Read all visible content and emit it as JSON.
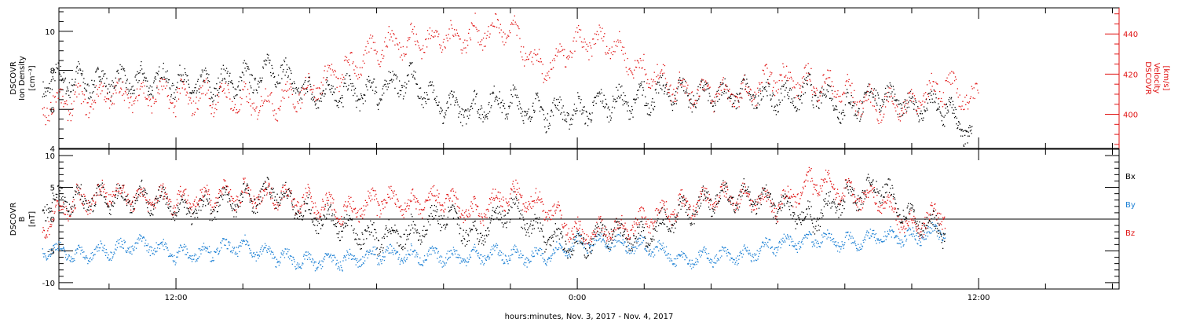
{
  "chart_data": [
    {
      "type": "scatter",
      "panel": "top",
      "left_axis_label": [
        "DSCOVR",
        "Ion Density",
        "[cm⁻³]"
      ],
      "right_axis_label": [
        "DSCOVR",
        "Velocity",
        "[km/s]"
      ],
      "left_ylim": [
        4,
        11.2
      ],
      "left_yticks": [
        4,
        6,
        8,
        10
      ],
      "right_ylim": [
        383,
        453
      ],
      "right_yticks": [
        400,
        420,
        440
      ],
      "series": [
        {
          "name": "Ion Density",
          "axis": "left",
          "color": "#000000",
          "x": [
            8.0,
            9.0,
            10.0,
            11.0,
            12.0,
            13.0,
            14.0,
            15.0,
            16.0,
            17.0,
            18.0,
            19.0,
            20.0,
            21.0,
            22.0,
            23.0,
            24.0,
            25.0,
            26.0,
            27.0,
            28.0,
            29.0,
            30.0,
            31.0,
            32.0,
            33.0,
            34.0,
            35.0
          ],
          "y": [
            7.4,
            7.6,
            7.3,
            7.6,
            7.4,
            7.2,
            7.6,
            8.0,
            6.8,
            6.9,
            6.9,
            7.7,
            6.0,
            6.2,
            6.4,
            5.8,
            6.0,
            6.3,
            6.6,
            7.0,
            6.6,
            7.0,
            6.5,
            7.0,
            6.1,
            6.7,
            6.3,
            6.0
          ],
          "end": [
            35.8,
            4.6
          ]
        },
        {
          "name": "Velocity",
          "axis": "right",
          "color": "#e01010",
          "x": [
            8.0,
            9.0,
            10.0,
            11.0,
            12.0,
            13.0,
            14.0,
            15.0,
            16.0,
            17.0,
            18.0,
            19.0,
            20.0,
            21.0,
            22.0,
            23.0,
            24.0,
            25.0,
            26.0,
            27.0,
            28.0,
            29.0,
            30.0,
            31.0,
            32.0,
            33.0,
            34.0,
            35.0
          ],
          "y": [
            404,
            407,
            409,
            411,
            408,
            409,
            407,
            405,
            414,
            421,
            433,
            438,
            437,
            441,
            442,
            420,
            437,
            435,
            421,
            414,
            410,
            411,
            418,
            416,
            412,
            403,
            407,
            414
          ],
          "end": [
            36.0,
            406
          ]
        }
      ]
    },
    {
      "type": "scatter",
      "panel": "bottom",
      "left_axis_label": [
        "DSCOVR",
        "B",
        "[nT]"
      ],
      "ylim": [
        -11,
        11
      ],
      "yticks": [
        -10,
        -5,
        0,
        5,
        10
      ],
      "zero_line": true,
      "legend": [
        "Bx",
        "By",
        "Bz"
      ],
      "legend_placement": "right",
      "series": [
        {
          "name": "Bx",
          "color": "#000000",
          "x": [
            8.0,
            9.0,
            10.0,
            11.0,
            12.0,
            13.0,
            14.0,
            15.0,
            16.0,
            17.0,
            18.0,
            19.0,
            20.0,
            21.0,
            22.0,
            23.0,
            24.0,
            25.0,
            26.0,
            27.0,
            28.0,
            29.0,
            30.0,
            31.0,
            32.0,
            33.0,
            34.0,
            35.0
          ],
          "y": [
            2.5,
            3.5,
            3.0,
            4.0,
            1.5,
            2.0,
            3.5,
            4.0,
            1.0,
            -1.0,
            -3.0,
            -2.0,
            0.5,
            -2.5,
            2.0,
            -2.5,
            -4.0,
            -2.0,
            -3.0,
            1.0,
            3.0,
            4.0,
            2.0,
            0.0,
            3.5,
            5.0,
            0.5,
            -2.0
          ]
        },
        {
          "name": "By",
          "color": "#1a7fd4",
          "x": [
            8.0,
            9.0,
            10.0,
            11.0,
            12.0,
            13.0,
            14.0,
            15.0,
            16.0,
            17.0,
            18.0,
            19.0,
            20.0,
            21.0,
            22.0,
            23.0,
            24.0,
            25.0,
            26.0,
            27.0,
            28.0,
            29.0,
            30.0,
            31.0,
            32.0,
            33.0,
            34.0,
            35.0
          ],
          "y": [
            -4.5,
            -5.5,
            -5.0,
            -3.5,
            -5.5,
            -5.0,
            -4.0,
            -6.0,
            -6.5,
            -6.5,
            -5.5,
            -5.5,
            -6.0,
            -5.5,
            -5.5,
            -6.0,
            -3.5,
            -4.0,
            -4.0,
            -6.0,
            -6.0,
            -5.5,
            -4.0,
            -3.0,
            -3.5,
            -3.0,
            -2.5,
            -2.0
          ]
        },
        {
          "name": "Bz",
          "color": "#e01010",
          "x": [
            8.0,
            9.0,
            10.0,
            11.0,
            12.0,
            13.0,
            14.0,
            15.0,
            16.0,
            17.0,
            18.0,
            19.0,
            20.0,
            21.0,
            22.0,
            23.0,
            24.0,
            25.0,
            26.0,
            27.0,
            28.0,
            29.0,
            30.0,
            31.0,
            32.0,
            33.0,
            34.0,
            35.0
          ],
          "y": [
            -1.0,
            3.0,
            4.0,
            3.5,
            3.0,
            3.5,
            4.0,
            3.5,
            3.0,
            1.0,
            3.0,
            2.5,
            3.0,
            1.0,
            4.0,
            2.0,
            -2.0,
            -2.0,
            0.0,
            2.0,
            3.0,
            4.0,
            2.0,
            6.0,
            4.5,
            3.0,
            -1.0,
            1.0
          ]
        }
      ]
    }
  ],
  "x_axis": {
    "range": [
      8.5,
      40.2
    ],
    "ticks": [
      {
        "x": 12,
        "label": "12:00",
        "major": true
      },
      {
        "x": 24,
        "label": "0:00",
        "major": true
      },
      {
        "x": 36,
        "label": "12:00",
        "major": true
      }
    ],
    "minor_ticks": [
      10,
      14,
      16,
      18,
      20,
      22,
      26,
      28,
      30,
      32,
      34,
      38,
      40
    ],
    "footer": "hours:minutes, Nov.  3, 2017 - Nov.  4, 2017"
  }
}
